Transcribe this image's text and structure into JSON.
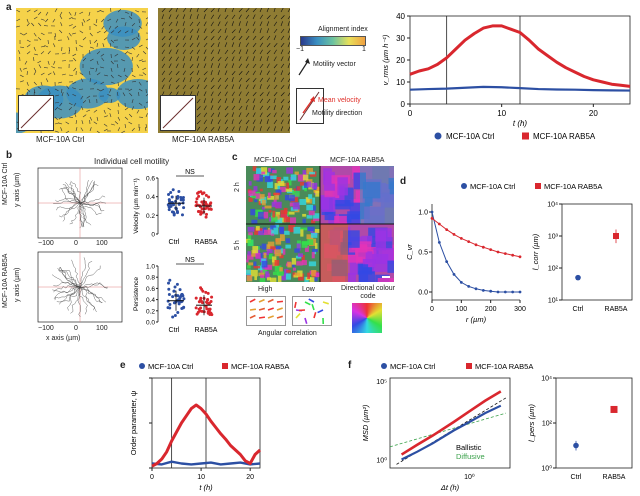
{
  "panel_labels": {
    "a": "a",
    "b": "b",
    "c": "c",
    "d": "d",
    "e": "e",
    "f": "f"
  },
  "cell_lines": {
    "ctrl": "MCF-10A Ctrl",
    "rab5a": "MCF-10A RAB5A"
  },
  "panel_a": {
    "left_caption": "MCF-10A Ctrl",
    "right_caption": "MCF-10A RAB5A",
    "colorbar_title": "Alignment index",
    "colorbar_min": "−1",
    "colorbar_max": "1",
    "motility_vector": "Motility vector",
    "mean_velocity": "Mean velocity",
    "motility_direction": "Motility direction",
    "colors": {
      "yellow": "#f5d24a",
      "blue": "#3a8fc2",
      "dark": "#2a2a1a",
      "red": "#e0302a"
    }
  },
  "panel_b": {
    "title": "Individual cell motility",
    "row_ctrl": "MCF-10A Ctrl",
    "row_rab5a": "MCF-10A RAB5A",
    "ylabel_tracks": "y axis (µm)",
    "xlabel_tracks": "x axis (µm)",
    "tick_neg100": "−100",
    "tick_0": "0",
    "tick_100": "100",
    "ns_top": "NS",
    "ns_bottom": "NS",
    "velocity_label": "Velocity (µm min⁻¹)",
    "persistence_label": "Persistence",
    "x_ctrl": "Ctrl",
    "x_rab5a": "RAB5A",
    "vel_ticks": [
      "0.6",
      "0.4",
      "0.2",
      "0"
    ],
    "pers_ticks": [
      "1.0",
      "0.8",
      "0.6",
      "0.4",
      "0.2",
      "0.0"
    ]
  },
  "panel_c": {
    "ctrl_header": "MCF-10A Ctrl",
    "rab5a_header": "MCF-10A RAB5A",
    "row1": "2 h",
    "row2": "5 h",
    "high": "High",
    "low": "Low",
    "angular": "Angular correlation",
    "colour_code": "Directional colour code"
  },
  "panel_d": {
    "legend_ctrl": "MCF-10A Ctrl",
    "legend_rab5a": "MCF-10A RAB5A",
    "ylabel_left": "C_vr",
    "xlabel_left": "r (µm)",
    "ylabel_right": "l_corr (µm)",
    "x_ctrl": "Ctrl",
    "x_rab5a": "RAB5A"
  },
  "panel_e": {
    "legend_ctrl": "MCF-10A Ctrl",
    "legend_rab5a": "MCF-10A RAB5A",
    "ylabel": "Order parameter, ψ",
    "xlabel": "t (h)"
  },
  "panel_f": {
    "legend_ctrl": "MCF-10A Ctrl",
    "legend_rab5a": "MCF-10A RAB5A",
    "ylabel_left": "MSD (µm²)",
    "xlabel_left": "Δt (h)",
    "ballistic": "Ballistic",
    "diffusive": "Diffusive",
    "ylabel_right": "l_pers (µm)",
    "x_ctrl": "Ctrl",
    "x_rab5a": "RAB5A"
  },
  "colors": {
    "ctrl": "#2c4fa3",
    "rab5a": "#d9272e",
    "green": "#3aa14a"
  },
  "chart_data": [
    {
      "type": "line",
      "id": "a-velocity",
      "xlabel": "t (h)",
      "ylabel": "v_rms (µm h⁻¹)",
      "xlim": [
        0,
        24
      ],
      "ylim": [
        0,
        40
      ],
      "xticks": [
        0,
        10,
        20
      ],
      "yticks": [
        0,
        10,
        20,
        30,
        40
      ],
      "vlines": [
        4,
        12
      ],
      "series": [
        {
          "name": "MCF-10A Ctrl",
          "color": "#2c4fa3",
          "x": [
            0,
            2,
            4,
            6,
            8,
            10,
            12,
            14,
            16,
            18,
            20,
            22,
            24
          ],
          "y": [
            6.5,
            6.8,
            7.0,
            7.4,
            7.8,
            7.6,
            7.2,
            6.8,
            6.6,
            6.5,
            6.3,
            6.2,
            6.1
          ]
        },
        {
          "name": "MCF-10A RAB5A",
          "color": "#d9272e",
          "x": [
            0,
            1,
            2,
            3,
            4,
            5,
            6,
            7,
            8,
            9,
            10,
            11,
            12,
            13,
            14,
            15,
            16,
            17,
            18,
            19,
            20,
            21,
            22,
            23,
            24
          ],
          "y": [
            13.5,
            15,
            16,
            18,
            21,
            25,
            29,
            32,
            34.5,
            35.5,
            35.5,
            34,
            32.5,
            29,
            25,
            22,
            19,
            16.5,
            14.5,
            12.5,
            11,
            10,
            9,
            8.5,
            8
          ]
        }
      ]
    },
    {
      "type": "scatter",
      "id": "b-velocity",
      "ylabel": "Velocity (µm min⁻¹)",
      "categories": [
        "Ctrl",
        "RAB5A"
      ],
      "ylim": [
        0,
        0.6
      ],
      "series": [
        {
          "name": "Ctrl",
          "color": "#2c4fa3",
          "mean": 0.33,
          "sd": 0.08
        },
        {
          "name": "RAB5A",
          "color": "#d9272e",
          "mean": 0.3,
          "sd": 0.09
        }
      ]
    },
    {
      "type": "scatter",
      "id": "b-persistence",
      "ylabel": "Persistence",
      "categories": [
        "Ctrl",
        "RAB5A"
      ],
      "ylim": [
        0,
        1
      ],
      "series": [
        {
          "name": "Ctrl",
          "color": "#2c4fa3",
          "mean": 0.38,
          "sd": 0.18
        },
        {
          "name": "RAB5A",
          "color": "#d9272e",
          "mean": 0.3,
          "sd": 0.18
        }
      ]
    },
    {
      "type": "line",
      "id": "d-correlation",
      "xlabel": "r (µm)",
      "ylabel": "C_vr",
      "xlim": [
        0,
        300
      ],
      "ylim": [
        -0.1,
        1.1
      ],
      "xticks": [
        0,
        100,
        200,
        300
      ],
      "yticks": [
        0,
        0.5,
        1.0
      ],
      "series": [
        {
          "name": "MCF-10A Ctrl",
          "color": "#2c4fa3",
          "x": [
            0,
            25,
            50,
            75,
            100,
            125,
            150,
            175,
            200,
            225,
            250,
            275,
            300
          ],
          "y": [
            1.0,
            0.62,
            0.38,
            0.22,
            0.12,
            0.07,
            0.04,
            0.02,
            0.01,
            0.0,
            0.0,
            0.0,
            0.0
          ]
        },
        {
          "name": "MCF-10A RAB5A",
          "color": "#d9272e",
          "x": [
            0,
            25,
            50,
            75,
            100,
            125,
            150,
            175,
            200,
            225,
            250,
            275,
            300
          ],
          "y": [
            0.92,
            0.85,
            0.78,
            0.72,
            0.67,
            0.63,
            0.59,
            0.56,
            0.53,
            0.5,
            0.48,
            0.46,
            0.44
          ]
        }
      ]
    },
    {
      "type": "scatter",
      "id": "d-lcorr",
      "ylabel": "l_corr (µm)",
      "log_scale": true,
      "categories": [
        "Ctrl",
        "RAB5A"
      ],
      "ylim": [
        10,
        10000
      ],
      "yticks": [
        "10¹",
        "10²",
        "10³",
        "10⁴"
      ],
      "series": [
        {
          "name": "Ctrl",
          "color": "#2c4fa3",
          "values": [
            50
          ]
        },
        {
          "name": "RAB5A",
          "color": "#d9272e",
          "values": [
            1000
          ]
        }
      ]
    },
    {
      "type": "line",
      "id": "e-order",
      "xlabel": "t (h)",
      "ylabel": "Order parameter, ψ",
      "xlim": [
        0,
        22
      ],
      "ylim": [
        0,
        1
      ],
      "xticks": [
        0,
        10,
        20
      ],
      "yticks": [
        0,
        0.5,
        1
      ],
      "vlines": [
        4,
        11
      ],
      "series": [
        {
          "name": "MCF-10A Ctrl",
          "color": "#2c4fa3",
          "x": [
            0,
            2,
            4,
            6,
            8,
            10,
            12,
            14,
            16,
            18,
            20,
            22
          ],
          "y": [
            0.05,
            0.04,
            0.07,
            0.05,
            0.04,
            0.05,
            0.06,
            0.04,
            0.05,
            0.06,
            0.04,
            0.05
          ]
        },
        {
          "name": "MCF-10A RAB5A",
          "color": "#d9272e",
          "x": [
            0,
            1,
            2,
            3,
            4,
            5,
            6,
            7,
            8,
            9,
            10,
            11,
            12,
            13,
            14,
            15,
            16,
            17,
            18,
            19,
            20,
            21,
            22
          ],
          "y": [
            0.02,
            0.05,
            0.1,
            0.18,
            0.3,
            0.4,
            0.5,
            0.58,
            0.66,
            0.7,
            0.66,
            0.6,
            0.52,
            0.45,
            0.38,
            0.32,
            0.25,
            0.2,
            0.15,
            0.08,
            0.05,
            0.15,
            0.2
          ]
        }
      ]
    },
    {
      "type": "line",
      "id": "f-msd",
      "xlabel": "Δt (h)",
      "ylabel": "MSD (µm²)",
      "log_scale": true,
      "xticks": [
        "10⁰"
      ],
      "yticks": [
        "10⁰",
        "10⁵"
      ],
      "series": [
        {
          "name": "MCF-10A Ctrl",
          "color": "#2c4fa3",
          "x": [
            0.05,
            0.1,
            0.2,
            0.5,
            1,
            2,
            4
          ],
          "y": [
            1,
            3,
            10,
            60,
            200,
            700,
            2000
          ]
        },
        {
          "name": "MCF-10A RAB5A",
          "color": "#d9272e",
          "x": [
            0.05,
            0.1,
            0.2,
            0.5,
            1,
            2,
            4
          ],
          "y": [
            2,
            8,
            30,
            200,
            900,
            4000,
            15000
          ]
        }
      ]
    },
    {
      "type": "scatter",
      "id": "f-lpers",
      "ylabel": "l_pers (µm)",
      "log_scale": true,
      "categories": [
        "Ctrl",
        "RAB5A"
      ],
      "ylim": [
        1,
        10000
      ],
      "yticks": [
        "10⁰",
        "10²",
        "10⁴"
      ],
      "series": [
        {
          "name": "Ctrl",
          "color": "#2c4fa3",
          "values": [
            10
          ]
        },
        {
          "name": "RAB5A",
          "color": "#d9272e",
          "values": [
            400
          ]
        }
      ]
    }
  ]
}
